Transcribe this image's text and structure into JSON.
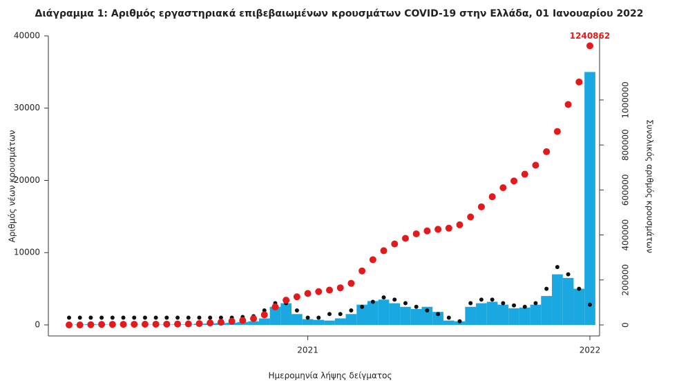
{
  "chart_data": {
    "type": "bar-line",
    "title": "Διάγραμμα 1: Αριθμός εργαστηριακά επιβεβαιωμένων κρουσμάτων COVID-19 στην Ελλάδα, 01 Ιανουαρίου 2022",
    "x_label": "Ημερομηνία λήψης δείγματος",
    "y_label": "Αριθμός νέων κρουσμάτων",
    "y2_label": "Συνολικός αριθμός κρουσμάτων",
    "categories": [
      null,
      null,
      null,
      null,
      null,
      null,
      null,
      null,
      null,
      null,
      null,
      null,
      null,
      null,
      null,
      null,
      null,
      null,
      null,
      null,
      null,
      null,
      "2021",
      null,
      null,
      null,
      null,
      null,
      null,
      null,
      null,
      null,
      null,
      null,
      null,
      null,
      null,
      null,
      null,
      null,
      null,
      null,
      null,
      null,
      null,
      null,
      null,
      null,
      "2022"
    ],
    "ylim": [
      -1530,
      40000
    ],
    "yticks": [
      0,
      10000,
      20000,
      30000,
      40000
    ],
    "y2lim": [
      -49000,
      1285000
    ],
    "y2ticks": [
      0,
      200000,
      400000,
      600000,
      800000,
      1000000
    ],
    "series": [
      {
        "color": "#1ba8e0",
        "values": [
          0,
          50,
          100,
          50,
          20,
          10,
          20,
          20,
          30,
          40,
          50,
          50,
          150,
          200,
          250,
          300,
          400,
          500,
          900,
          2500,
          3000,
          1500,
          800,
          700,
          600,
          900,
          1500,
          2800,
          3300,
          3500,
          3000,
          2500,
          2200,
          2500,
          1800,
          600,
          500,
          2500,
          3000,
          3200,
          2800,
          2300,
          2400,
          2800,
          4000,
          7000,
          6500,
          5000,
          35000
        ]
      },
      {
        "color": "#e31a1c",
        "axis": "y2",
        "values": [
          0,
          100,
          1000,
          2300,
          2500,
          2700,
          2900,
          3100,
          3300,
          3600,
          4000,
          4500,
          6000,
          9000,
          12000,
          16000,
          20000,
          28000,
          45000,
          80000,
          110000,
          125000,
          140000,
          148000,
          155000,
          165000,
          185000,
          240000,
          290000,
          330000,
          360000,
          385000,
          405000,
          418000,
          425000,
          430000,
          445000,
          480000,
          525000,
          570000,
          610000,
          640000,
          670000,
          710000,
          770000,
          860000,
          980000,
          1080000,
          1240862
        ]
      },
      {
        "color": "#111111",
        "values": [
          1000,
          1000,
          1000,
          1000,
          1000,
          1000,
          1000,
          1000,
          1000,
          1000,
          1000,
          1000,
          1000,
          1000,
          1000,
          1000,
          1100,
          1200,
          2000,
          3000,
          3000,
          2000,
          1000,
          1000,
          1500,
          1500,
          2000,
          2500,
          3200,
          3800,
          3500,
          3000,
          2500,
          2000,
          1500,
          1000,
          500,
          3000,
          3500,
          3500,
          3000,
          2700,
          2500,
          3000,
          5000,
          8000,
          7000,
          5000,
          2800
        ]
      }
    ]
  }
}
